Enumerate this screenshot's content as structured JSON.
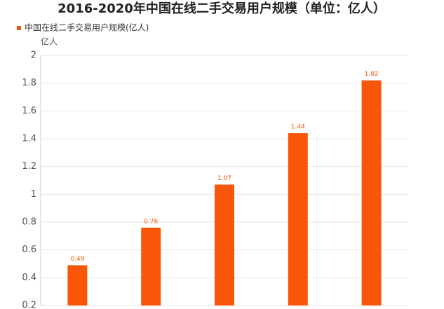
{
  "chart_data": {
    "type": "bar",
    "title": "2016-2020年中国在线二手交易用户规模（单位：亿人）",
    "legend_label": "中国在线二手交易用户规模(亿人)",
    "y_unit": "亿人",
    "categories": [
      null,
      null,
      null,
      null,
      null
    ],
    "series": [
      {
        "name": "中国在线二手交易用户规模(亿人)",
        "color": "#fa560a",
        "values": [
          0.49,
          0.76,
          1.07,
          1.44,
          1.82
        ]
      }
    ],
    "ylim": [
      0.2,
      2
    ],
    "yticks": [
      0.2,
      0.4,
      0.6,
      0.8,
      1,
      1.2,
      1.4,
      1.6,
      1.8,
      2
    ],
    "grid": true
  }
}
